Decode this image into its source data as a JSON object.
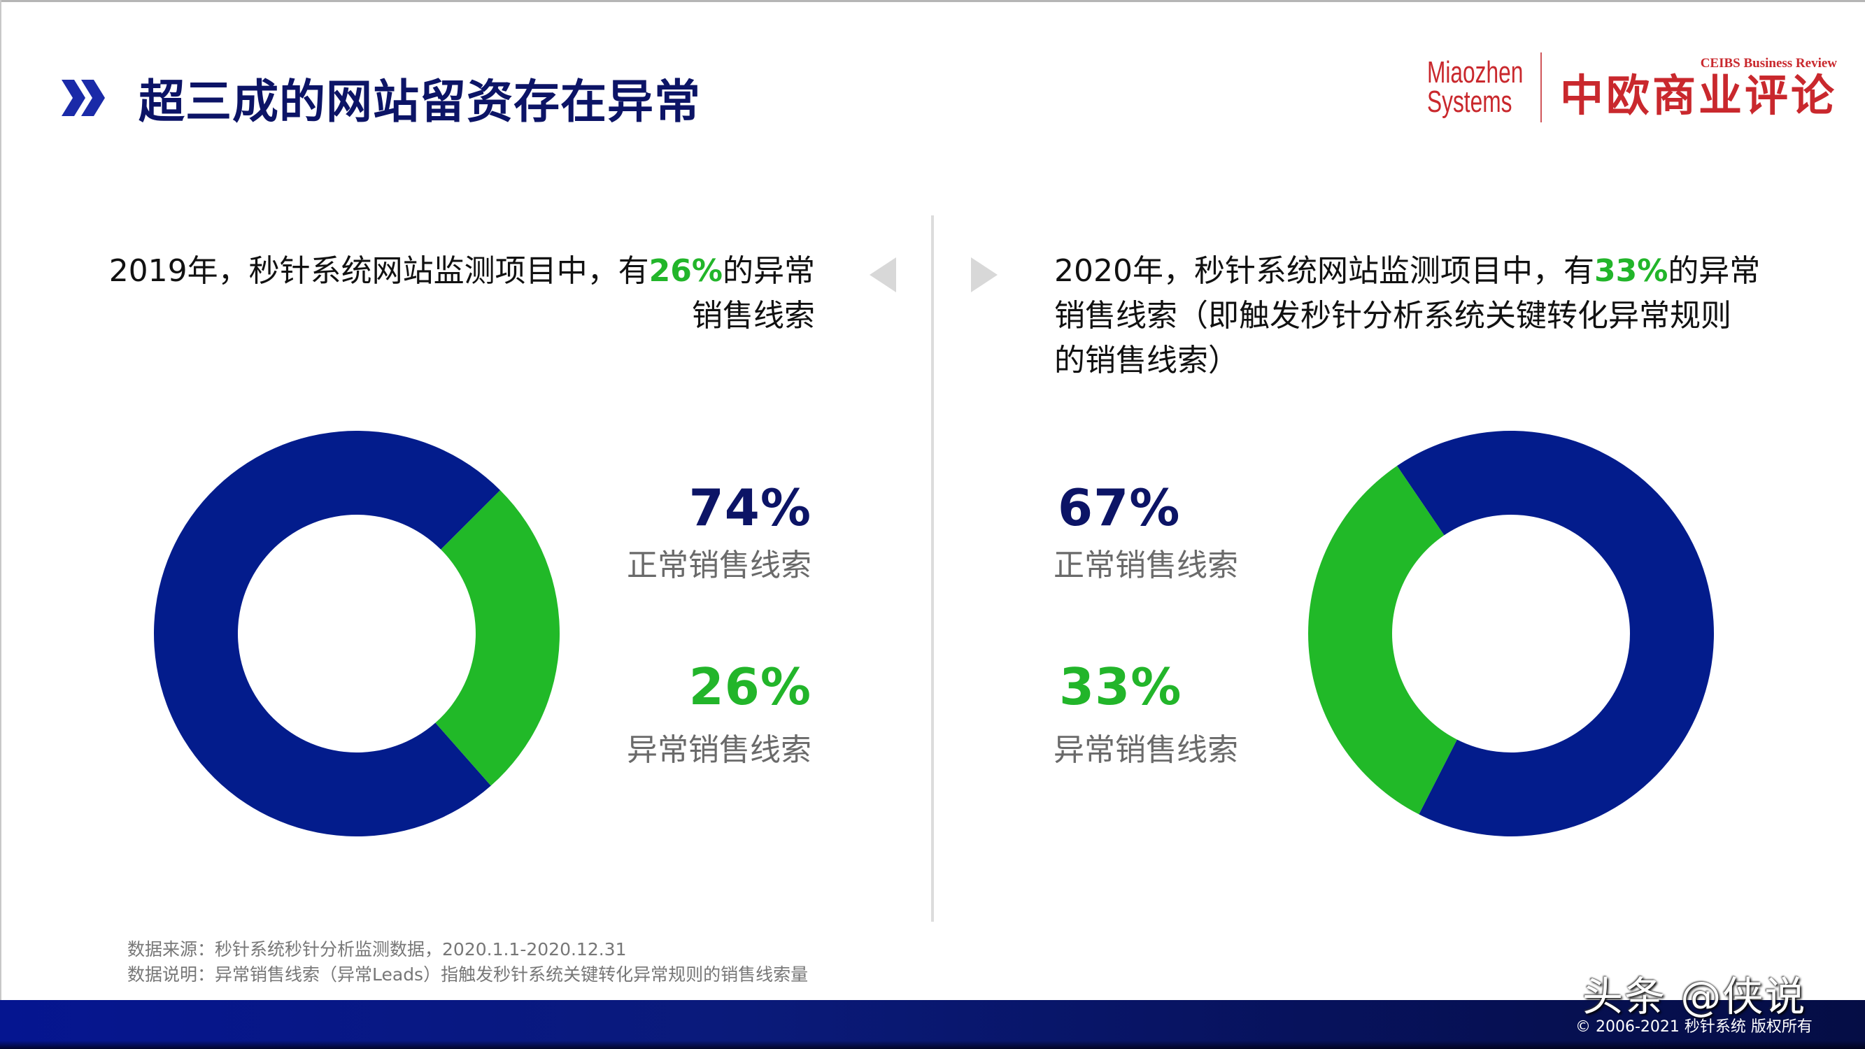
{
  "header": {
    "title": "超三成的网站留资存在异常",
    "title_icon": "double-chevron-right-icon",
    "logos": {
      "miaozhen_line1": "Miaozhen",
      "miaozhen_line2": "Systems",
      "ceibs_en": "CEIBS Business Review",
      "ceibs_zh": "中欧商业评论"
    }
  },
  "nav": {
    "prev_icon": "triangle-left-icon",
    "next_icon": "triangle-right-icon"
  },
  "panels": [
    {
      "year": "2019",
      "desc_before": "2019年，秒针系统网站监测项目中，有",
      "desc_highlight": "26%",
      "desc_after": "的异常销售线索",
      "normal_pct": "74%",
      "normal_label": "正常销售线索",
      "abnormal_pct": "26%",
      "abnormal_label": "异常销售线索"
    },
    {
      "year": "2020",
      "desc_before": "2020年，秒针系统网站监测项目中，有",
      "desc_highlight": "33%",
      "desc_after": "的异常销售线索（即触发秒针分析系统关键转化异常规则的销售线索）",
      "normal_pct": "67%",
      "normal_label": "正常销售线索",
      "abnormal_pct": "33%",
      "abnormal_label": "异常销售线索"
    }
  ],
  "notes": {
    "source": "数据来源：秒针系统秒针分析监测数据，2020.1.1-2020.12.31",
    "explanation": "数据说明：异常销售线索（异常Leads）指触发秒针系统关键转化异常规则的销售线索量"
  },
  "footer": {
    "watermark": "头条 @侠说",
    "copyright": "© 2006-2021 秒针系统 版权所有"
  },
  "colors": {
    "normal": "#031c8c",
    "abnormal": "#21b928",
    "title": "#0c1466",
    "label_gray": "#6a6a6a",
    "brand_red": "#c9282d"
  },
  "chart_data": [
    {
      "type": "pie",
      "subtype": "donut",
      "title": "2019年",
      "categories": [
        "正常销售线索",
        "异常销售线索"
      ],
      "values": [
        74,
        26
      ],
      "unit": "%",
      "colors": [
        "#031c8c",
        "#21b928"
      ],
      "legend_position": "right"
    },
    {
      "type": "pie",
      "subtype": "donut",
      "title": "2020年",
      "categories": [
        "正常销售线索",
        "异常销售线索"
      ],
      "values": [
        67,
        33
      ],
      "unit": "%",
      "colors": [
        "#031c8c",
        "#21b928"
      ],
      "legend_position": "left"
    }
  ]
}
